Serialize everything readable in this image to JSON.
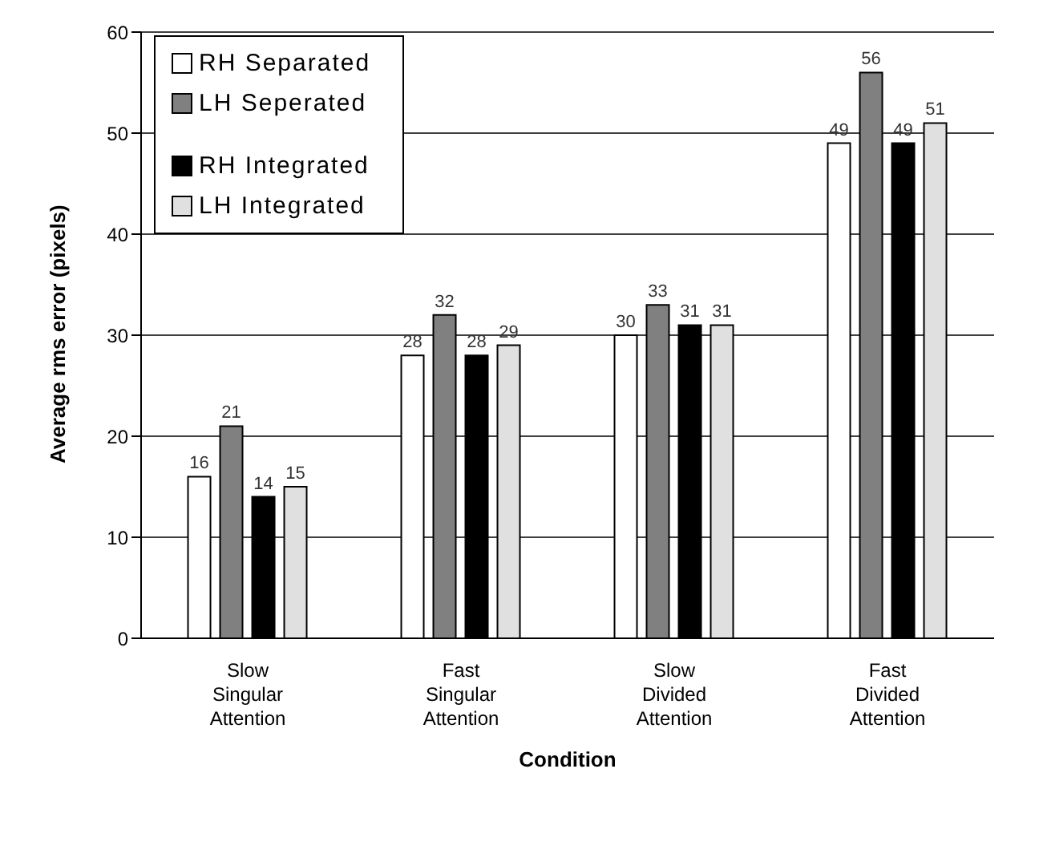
{
  "chart_data": {
    "type": "bar",
    "xlabel": "Condition",
    "ylabel": "Average rms error (pixels)",
    "categories": [
      "Slow Singular Attention",
      "Fast Singular Attention",
      "Slow Divided Attention",
      "Fast Divided Attention"
    ],
    "series": [
      {
        "name": "RH Separated",
        "color": "#ffffff",
        "values": [
          16,
          28,
          30,
          49
        ]
      },
      {
        "name": "LH Seperated",
        "color": "#808080",
        "values": [
          21,
          32,
          33,
          56
        ]
      },
      {
        "name": "RH Integrated",
        "color": "#000000",
        "values": [
          14,
          28,
          31,
          49
        ]
      },
      {
        "name": "LH Integrated",
        "color": "#e0e0e0",
        "values": [
          15,
          29,
          31,
          51
        ]
      }
    ],
    "ylim": [
      0,
      60
    ],
    "yticks": [
      0,
      10,
      20,
      30,
      40,
      50,
      60
    ],
    "grid": "y",
    "legend": "top left",
    "data_labels": true
  }
}
